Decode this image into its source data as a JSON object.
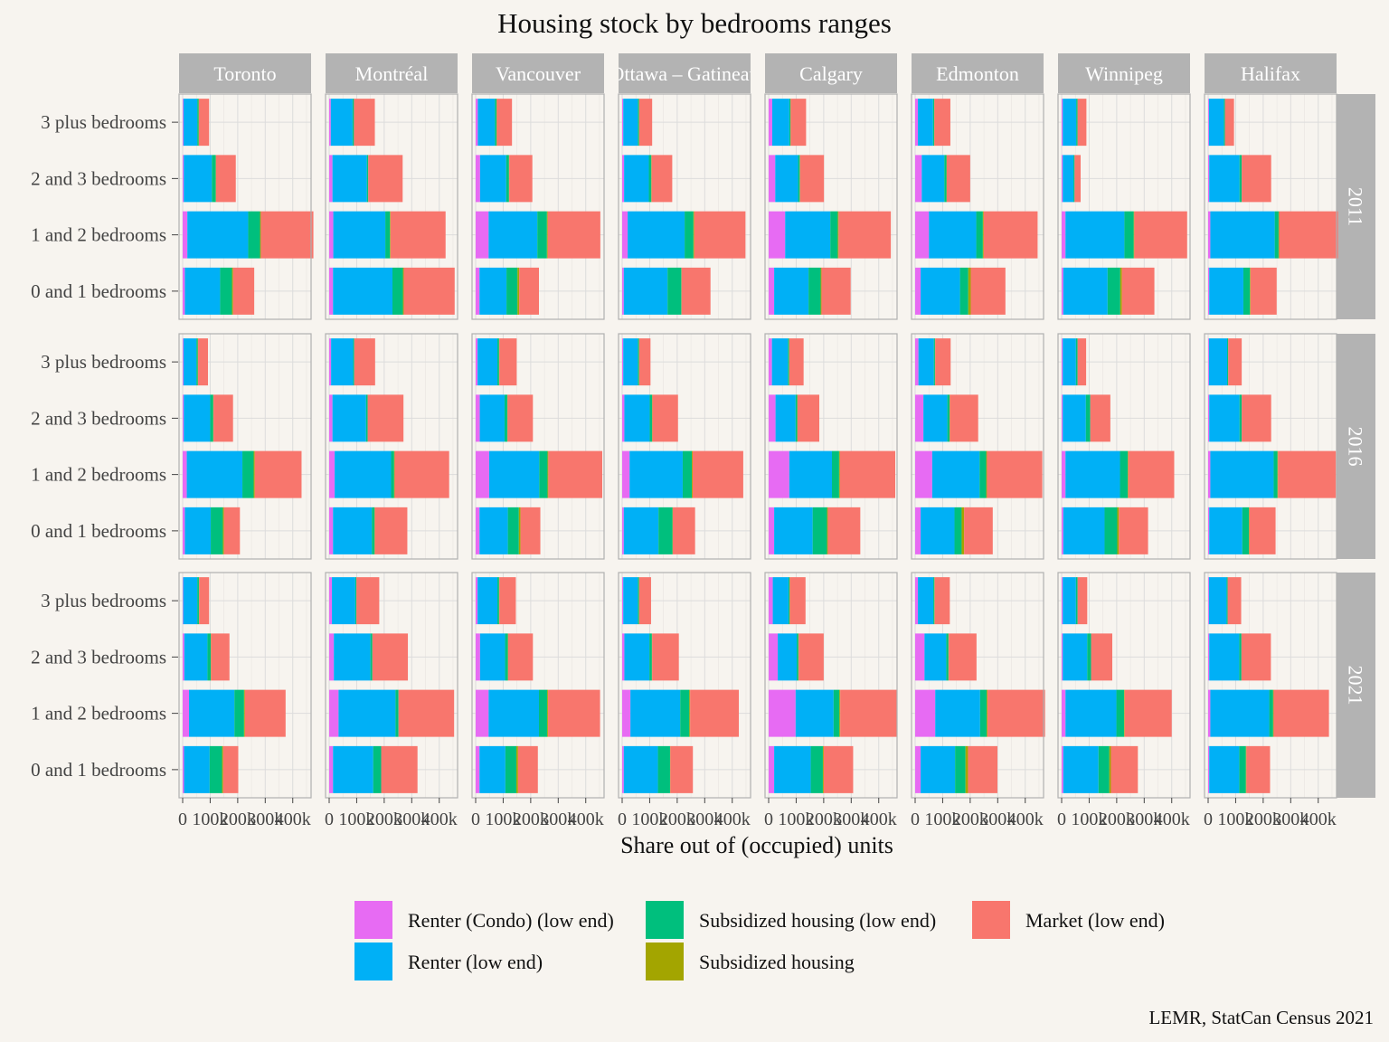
{
  "chart_data": {
    "type": "bar",
    "orientation": "horizontal",
    "stacked": true,
    "title": "Housing stock by bedrooms ranges",
    "xlabel": "Share out of (occupied) units",
    "ylabel": "",
    "caption": "LEMR, StatCan Census 2021",
    "categories": [
      "0 and 1 bedrooms",
      "1 and 2 bedrooms",
      "2 and 3 bedrooms",
      "3 plus bedrooms"
    ],
    "facet_columns": [
      "Toronto",
      "Montréal",
      "Vancouver",
      "Ottawa – Gatineau",
      "Calgary",
      "Edmonton",
      "Winnipeg",
      "Halifax"
    ],
    "facet_rows": [
      "2011",
      "2016",
      "2021"
    ],
    "series": [
      {
        "name": "Renter (Condo) (low end)",
        "color": "#e76bf3"
      },
      {
        "name": "Renter (low end)",
        "color": "#00b0f6"
      },
      {
        "name": "Subsidized housing (low end)",
        "color": "#00bf7d"
      },
      {
        "name": "Subsidized housing",
        "color": "#a3a500"
      },
      {
        "name": "Market (low end)",
        "color": "#f8766d"
      }
    ],
    "legend_position": "bottom",
    "grid": true,
    "facets": [
      {
        "col": "Toronto",
        "xlim": [
          0,
          460000
        ],
        "ticks": [
          "0",
          "100k",
          "200k",
          "300k",
          "400k"
        ],
        "rows": [
          [
            [
              8000,
              128000,
              43000,
              4000,
              77000
            ],
            [
              17000,
              221000,
              43000,
              3000,
              191000
            ],
            [
              4000,
              102000,
              14000,
              1000,
              72000
            ],
            [
              3000,
              50000,
              5000,
              1000,
              37000
            ]
          ],
          [
            [
              8000,
              94000,
              44000,
              4000,
              58000
            ],
            [
              15000,
              202000,
              41000,
              4000,
              170000
            ],
            [
              4000,
              96000,
              11000,
              1000,
              71000
            ],
            [
              3000,
              47000,
              5000,
              1000,
              36000
            ]
          ],
          [
            [
              5000,
              93000,
              45000,
              4000,
              55000
            ],
            [
              23000,
              165000,
              35000,
              3000,
              148000
            ],
            [
              6000,
              84000,
              12000,
              1000,
              67000
            ],
            [
              2000,
              51000,
              6000,
              1000,
              36000
            ]
          ]
        ]
      },
      {
        "col": "Montréal",
        "xlim": [
          0,
          460000
        ],
        "ticks": [
          "0",
          "100k",
          "200k",
          "300k",
          "400k"
        ],
        "rows": [
          [
            [
              14000,
              216000,
              38000,
              3000,
              185000
            ],
            [
              15000,
              189000,
              17000,
              2000,
              200000
            ],
            [
              12000,
              125000,
              5000,
              0,
              125000
            ],
            [
              6000,
              79000,
              5000,
              0,
              76000
            ]
          ],
          [
            [
              14000,
              141000,
              10000,
              1000,
              118000
            ],
            [
              20000,
              205000,
              11000,
              2000,
              198000
            ],
            [
              12000,
              122000,
              6000,
              0,
              130000
            ],
            [
              7000,
              80000,
              4000,
              0,
              76000
            ]
          ],
          [
            [
              14000,
              146000,
              29000,
              0,
              132000
            ],
            [
              34000,
              207000,
              11000,
              0,
              202000
            ],
            [
              17000,
              133000,
              7000,
              0,
              129000
            ],
            [
              10000,
              85000,
              4000,
              0,
              83000
            ]
          ]
        ]
      },
      {
        "col": "Vancouver",
        "xlim": [
          0,
          460000
        ],
        "ticks": [
          "0",
          "100k",
          "200k",
          "300k",
          "400k"
        ],
        "rows": [
          [
            [
              14000,
              98000,
              40000,
              6000,
              72000
            ],
            [
              47000,
              177000,
              35000,
              3000,
              191000
            ],
            [
              16000,
              95000,
              10000,
              1000,
              84000
            ],
            [
              8000,
              62000,
              6000,
              1000,
              55000
            ]
          ],
          [
            [
              14000,
              103000,
              40000,
              6000,
              72000
            ],
            [
              49000,
              182000,
              30000,
              3000,
              196000
            ],
            [
              15000,
              90000,
              10000,
              1000,
              92000
            ],
            [
              7000,
              72000,
              6000,
              1000,
              63000
            ]
          ],
          [
            [
              14000,
              94000,
              40000,
              6000,
              72000
            ],
            [
              47000,
              183000,
              30000,
              3000,
              189000
            ],
            [
              16000,
              91000,
              10000,
              1000,
              90000
            ],
            [
              7000,
              72000,
              6000,
              1000,
              60000
            ]
          ]
        ]
      },
      {
        "col": "Ottawa – Gatineau",
        "xlim": [
          0,
          460000
        ],
        "ticks": [
          "0",
          "100k",
          "200k",
          "300k",
          "400k"
        ],
        "rows": [
          [
            [
              6000,
              159000,
              50000,
              1000,
              105000
            ],
            [
              20000,
              207000,
              32000,
              3000,
              186000
            ],
            [
              7000,
              90000,
              9000,
              1000,
              75000
            ],
            [
              4000,
              53000,
              4000,
              1000,
              47000
            ]
          ],
          [
            [
              6000,
              126000,
              51000,
              1000,
              81000
            ],
            [
              27000,
              193000,
              33000,
              3000,
              184000
            ],
            [
              8000,
              92000,
              9000,
              1000,
              93000
            ],
            [
              4000,
              53000,
              4000,
              1000,
              41000
            ]
          ],
          [
            [
              6000,
              124000,
              44000,
              1000,
              82000
            ],
            [
              30000,
              181000,
              33000,
              3000,
              177000
            ],
            [
              8000,
              91000,
              9000,
              1000,
              97000
            ],
            [
              4000,
              53000,
              4000,
              1000,
              43000
            ]
          ]
        ]
      },
      {
        "col": "Calgary",
        "xlim": [
          0,
          460000
        ],
        "ticks": [
          "0",
          "100k",
          "200k",
          "300k",
          "400k"
        ],
        "rows": [
          [
            [
              20000,
              125000,
              44000,
              3000,
              106000
            ],
            [
              60000,
              164000,
              27000,
              3000,
              190000
            ],
            [
              24000,
              83000,
              6000,
              1000,
              87000
            ],
            [
              13000,
              62000,
              4000,
              1000,
              56000
            ]
          ],
          [
            [
              20000,
              140000,
              52000,
              3000,
              118000
            ],
            [
              75000,
              155000,
              26000,
              3000,
              201000
            ],
            [
              25000,
              73000,
              6000,
              1000,
              79000
            ],
            [
              12000,
              58000,
              4000,
              1000,
              52000
            ]
          ],
          [
            [
              20000,
              133000,
              44000,
              3000,
              107000
            ],
            [
              98000,
              138000,
              21000,
              3000,
              208000
            ],
            [
              33000,
              69000,
              6000,
              1000,
              91000
            ],
            [
              15000,
              57000,
              4000,
              1000,
              57000
            ]
          ]
        ]
      },
      {
        "col": "Edmonton",
        "xlim": [
          0,
          460000
        ],
        "ticks": [
          "0",
          "100k",
          "200k",
          "300k",
          "400k"
        ],
        "rows": [
          [
            [
              20000,
              143000,
              30000,
              9000,
              126000
            ],
            [
              50000,
              172000,
              24000,
              3000,
              196000
            ],
            [
              24000,
              82000,
              8000,
              1000,
              85000
            ],
            [
              10000,
              55000,
              4000,
              1000,
              58000
            ]
          ],
          [
            [
              20000,
              123000,
              26000,
              9000,
              104000
            ],
            [
              62000,
              172000,
              24000,
              3000,
              201000
            ],
            [
              30000,
              87000,
              8000,
              1000,
              103000
            ],
            [
              12000,
              56000,
              4000,
              1000,
              56000
            ]
          ],
          [
            [
              20000,
              125000,
              38000,
              9000,
              107000
            ],
            [
              73000,
              163000,
              24000,
              3000,
              209000
            ],
            [
              34000,
              79000,
              8000,
              1000,
              101000
            ],
            [
              10000,
              56000,
              4000,
              1000,
              55000
            ]
          ]
        ]
      },
      {
        "col": "Winnipeg",
        "xlim": [
          0,
          460000
        ],
        "ticks": [
          "0",
          "100k",
          "200k",
          "300k",
          "400k"
        ],
        "rows": [
          [
            [
              6000,
              161000,
              46000,
              6000,
              118000
            ],
            [
              14000,
              214000,
              34000,
              2000,
              192000
            ],
            [
              4000,
              39000,
              4000,
              0,
              22000
            ],
            [
              4000,
              49000,
              5000,
              0,
              32000
            ]
          ],
          [
            [
              6000,
              150000,
              46000,
              6000,
              106000
            ],
            [
              14000,
              198000,
              28000,
              2000,
              167000
            ],
            [
              4000,
              84000,
              16000,
              0,
              73000
            ],
            [
              4000,
              48000,
              6000,
              0,
              31000
            ]
          ],
          [
            [
              6000,
              128000,
              39000,
              6000,
              98000
            ],
            [
              14000,
              185000,
              28000,
              2000,
              171000
            ],
            [
              4000,
              89000,
              14000,
              0,
              77000
            ],
            [
              4000,
              48000,
              6000,
              0,
              35000
            ]
          ]
        ]
      },
      {
        "col": "Halifax",
        "xlim": [
          0,
          460000
        ],
        "ticks": [
          "0",
          "100k",
          "200k",
          "300k",
          "400k"
        ],
        "rows": [
          [
            [
              4000,
              124000,
              24000,
              2000,
              95000
            ],
            [
              8000,
              234000,
              14000,
              2000,
              214000
            ],
            [
              4000,
              110000,
              8000,
              0,
              107000
            ],
            [
              3000,
              54000,
              4000,
              0,
              33000
            ]
          ],
          [
            [
              4000,
              120000,
              24000,
              2000,
              95000
            ],
            [
              8000,
              230000,
              14000,
              2000,
              210000
            ],
            [
              4000,
              110000,
              8000,
              0,
              107000
            ],
            [
              3000,
              66000,
              4000,
              0,
              49000
            ]
          ],
          [
            [
              4000,
              109000,
              24000,
              2000,
              86000
            ],
            [
              8000,
              214000,
              14000,
              2000,
              201000
            ],
            [
              4000,
              109000,
              8000,
              0,
              107000
            ],
            [
              3000,
              64000,
              4000,
              0,
              49000
            ]
          ]
        ]
      }
    ]
  }
}
